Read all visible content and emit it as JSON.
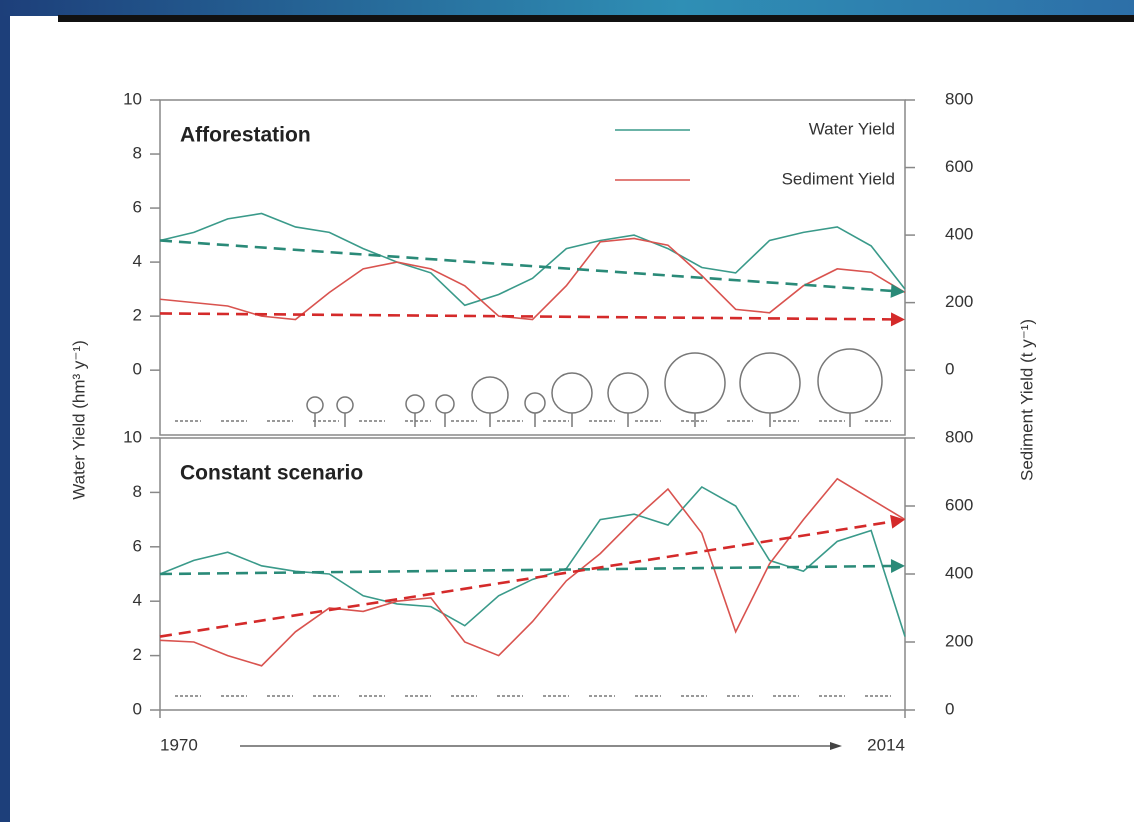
{
  "chart_data": [
    {
      "type": "line",
      "annotation": "Afforestation",
      "ylabel": "Water Yield (hm³ y⁻¹)",
      "y2label": "Sediment  Yield (t y⁻¹)",
      "x": [
        1970,
        1972,
        1974,
        1976,
        1978,
        1980,
        1982,
        1984,
        1986,
        1988,
        1990,
        1992,
        1994,
        1996,
        1998,
        2000,
        2002,
        2004,
        2006,
        2008,
        2010,
        2012,
        2014
      ],
      "xlim": [
        1970,
        2014
      ],
      "ylim": [
        -2.4,
        10
      ],
      "yticks": [
        0,
        2,
        4,
        6,
        8,
        10
      ],
      "y2lim": [
        -192,
        800
      ],
      "y2ticks": [
        0,
        200,
        400,
        600,
        800
      ],
      "legend": "upper right",
      "series": [
        {
          "name": "Water Yield",
          "color": "#3a9a8a",
          "values": [
            4.8,
            5.1,
            5.6,
            5.8,
            5.3,
            5.1,
            4.5,
            4.0,
            3.6,
            2.4,
            2.8,
            3.4,
            4.5,
            4.8,
            5.0,
            4.5,
            3.8,
            3.6,
            4.8,
            5.1,
            5.3,
            4.6,
            3.0
          ]
        },
        {
          "name": "Sediment Yield",
          "color": "#d9534f",
          "axis": "y2",
          "values": [
            210,
            200,
            190,
            160,
            150,
            230,
            300,
            320,
            300,
            250,
            160,
            150,
            250,
            380,
            390,
            370,
            280,
            180,
            170,
            250,
            300,
            290,
            230
          ]
        }
      ],
      "trend_lines": [
        {
          "color": "#2a8a78",
          "x": [
            1970,
            2014
          ],
          "values": [
            4.8,
            2.9
          ]
        },
        {
          "color": "#d42a2a",
          "axis": "y2",
          "x": [
            1970,
            2014
          ],
          "values": [
            168,
            150
          ]
        }
      ]
    },
    {
      "type": "line",
      "annotation": "Constant scenario",
      "x": [
        1970,
        1972,
        1974,
        1976,
        1978,
        1980,
        1982,
        1984,
        1986,
        1988,
        1990,
        1992,
        1994,
        1996,
        1998,
        2000,
        2002,
        2004,
        2006,
        2008,
        2010,
        2012,
        2014
      ],
      "xlim": [
        1970,
        2014
      ],
      "xticks": [
        1970,
        2014
      ],
      "ylim": [
        0,
        10
      ],
      "yticks": [
        0,
        2,
        4,
        6,
        8,
        10
      ],
      "y2lim": [
        0,
        800
      ],
      "y2ticks": [
        0,
        200,
        400,
        600,
        800
      ],
      "series": [
        {
          "color": "#3a9a8a",
          "values": [
            5.0,
            5.5,
            5.8,
            5.3,
            5.1,
            5.0,
            4.2,
            3.9,
            3.8,
            3.1,
            4.2,
            4.8,
            5.2,
            7.0,
            7.2,
            6.8,
            8.2,
            7.5,
            5.5,
            5.1,
            6.2,
            6.6,
            2.7
          ]
        },
        {
          "color": "#d9534f",
          "axis": "y2",
          "values": [
            205,
            200,
            160,
            130,
            230,
            300,
            290,
            320,
            330,
            200,
            160,
            260,
            380,
            460,
            560,
            650,
            520,
            230,
            430,
            560,
            680,
            620,
            560
          ]
        }
      ],
      "trend_lines": [
        {
          "color": "#2a8a78",
          "x": [
            1970,
            2014
          ],
          "values": [
            5.0,
            5.3
          ]
        },
        {
          "color": "#d42a2a",
          "axis": "y2",
          "x": [
            1970,
            2014
          ],
          "values": [
            216,
            560
          ]
        }
      ]
    }
  ]
}
